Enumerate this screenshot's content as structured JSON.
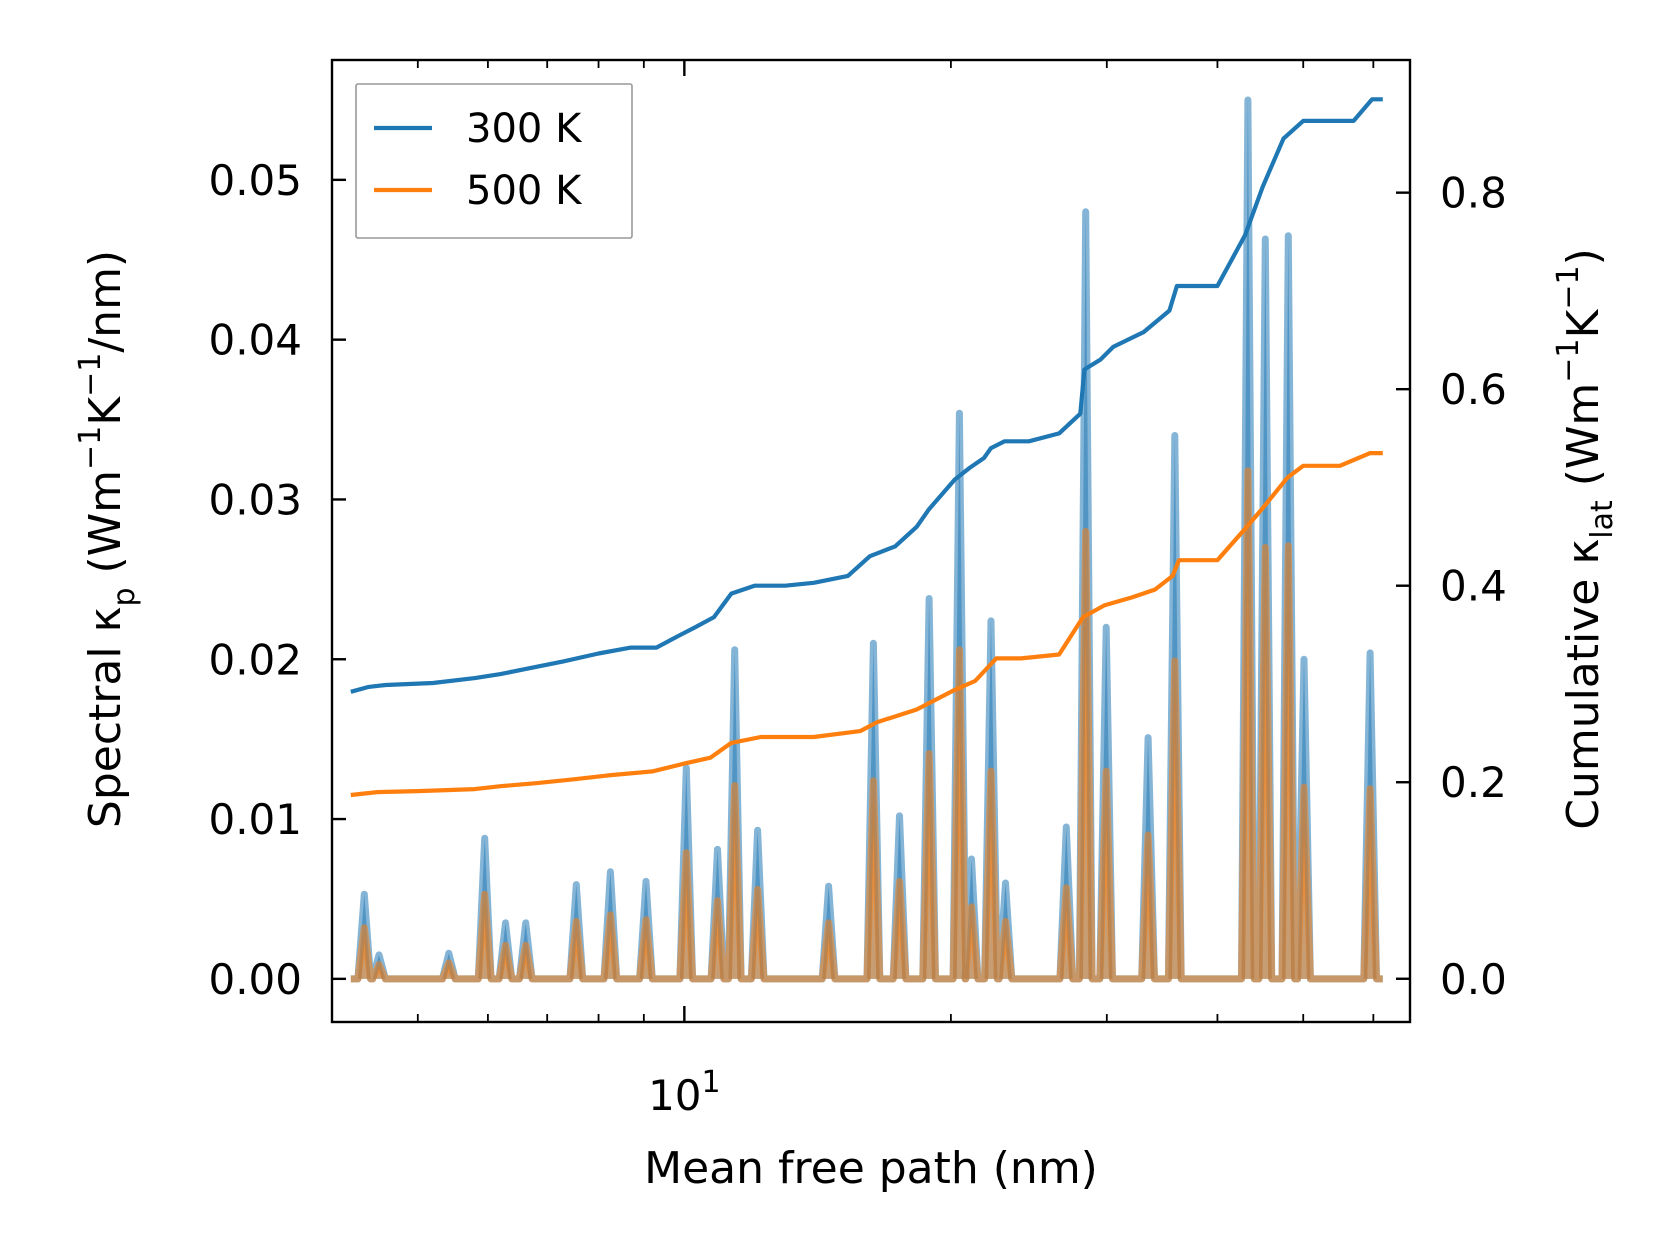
{
  "chart_data": {
    "type": "line",
    "xlabel": "Mean free path (nm)",
    "ylabel_left": "Spectral κ_p (Wm⁻¹K⁻¹/nm)",
    "ylabel_left_parts": [
      "Spectral κ",
      "p",
      " (Wm",
      "−1",
      "K",
      "−1",
      "/nm)"
    ],
    "ylabel_right": "Cumulative κ_lat (Wm⁻¹K⁻¹)",
    "ylabel_right_parts": [
      "Cumulative κ",
      "lat",
      " (Wm",
      "−1",
      "K",
      "−1",
      ")"
    ],
    "xscale": "log",
    "xlim": [
      4.0,
      66.0
    ],
    "ylim_left": [
      -0.0027,
      0.0575
    ],
    "ylim_right": [
      -0.044,
      0.935
    ],
    "x_tick_labels": [
      {
        "value": 10,
        "base": "10",
        "exp": "1"
      }
    ],
    "x_minor_ticks": [
      5,
      6,
      7,
      8,
      9,
      20,
      30,
      40,
      50,
      60
    ],
    "y_left_ticks": [
      0.0,
      0.01,
      0.02,
      0.03,
      0.04,
      0.05
    ],
    "y_left_tick_labels": [
      "0.00",
      "0.01",
      "0.02",
      "0.03",
      "0.04",
      "0.05"
    ],
    "y_right_ticks": [
      0.0,
      0.2,
      0.4,
      0.6,
      0.8
    ],
    "y_right_tick_labels": [
      "0.0",
      "0.2",
      "0.4",
      "0.6",
      "0.8"
    ],
    "legend_position": "upper-left",
    "series": [
      {
        "name": "300 K",
        "color": "#1f77b4",
        "spectral_peaks": [
          [
            4.35,
            0.0053
          ],
          [
            4.52,
            0.0015
          ],
          [
            5.42,
            0.0016
          ],
          [
            5.95,
            0.0088
          ],
          [
            6.28,
            0.0035
          ],
          [
            6.62,
            0.0035
          ],
          [
            7.55,
            0.0059
          ],
          [
            8.25,
            0.0067
          ],
          [
            9.05,
            0.0061
          ],
          [
            10.05,
            0.0132
          ],
          [
            10.9,
            0.0081
          ],
          [
            11.4,
            0.0206
          ],
          [
            12.1,
            0.0093
          ],
          [
            14.55,
            0.0058
          ],
          [
            16.35,
            0.021
          ],
          [
            17.5,
            0.0102
          ],
          [
            18.9,
            0.0238
          ],
          [
            20.45,
            0.0354
          ],
          [
            21.1,
            0.0075
          ],
          [
            22.2,
            0.0224
          ],
          [
            23.05,
            0.006
          ],
          [
            27.0,
            0.0095
          ],
          [
            28.4,
            0.048
          ],
          [
            29.95,
            0.022
          ],
          [
            33.4,
            0.0151
          ],
          [
            35.8,
            0.034
          ],
          [
            43.3,
            0.055
          ],
          [
            45.3,
            0.0463
          ],
          [
            48.1,
            0.0465
          ],
          [
            50.1,
            0.02
          ],
          [
            59.5,
            0.0204
          ]
        ],
        "cumulative_steps": [
          [
            4.2,
            0.292
          ],
          [
            4.4,
            0.297
          ],
          [
            4.6,
            0.299
          ],
          [
            5.2,
            0.301
          ],
          [
            5.8,
            0.306
          ],
          [
            6.2,
            0.31
          ],
          [
            6.6,
            0.315
          ],
          [
            7.3,
            0.323
          ],
          [
            8.0,
            0.331
          ],
          [
            8.7,
            0.337
          ],
          [
            9.3,
            0.337
          ],
          [
            9.9,
            0.35
          ],
          [
            10.3,
            0.358
          ],
          [
            10.8,
            0.368
          ],
          [
            11.3,
            0.392
          ],
          [
            12.0,
            0.4
          ],
          [
            13.0,
            0.4
          ],
          [
            14.0,
            0.403
          ],
          [
            15.3,
            0.41
          ],
          [
            16.2,
            0.43
          ],
          [
            17.3,
            0.44
          ],
          [
            18.3,
            0.46
          ],
          [
            18.9,
            0.478
          ],
          [
            20.2,
            0.508
          ],
          [
            21.0,
            0.52
          ],
          [
            21.8,
            0.53
          ],
          [
            22.2,
            0.54
          ],
          [
            23.0,
            0.547
          ],
          [
            24.5,
            0.547
          ],
          [
            26.5,
            0.555
          ],
          [
            28.0,
            0.575
          ],
          [
            28.3,
            0.62
          ],
          [
            29.5,
            0.63
          ],
          [
            30.5,
            0.643
          ],
          [
            33.0,
            0.658
          ],
          [
            35.3,
            0.68
          ],
          [
            36.0,
            0.705
          ],
          [
            40.0,
            0.705
          ],
          [
            43.0,
            0.757
          ],
          [
            45.0,
            0.806
          ],
          [
            47.5,
            0.855
          ],
          [
            50.0,
            0.873
          ],
          [
            55.0,
            0.873
          ],
          [
            57.0,
            0.873
          ],
          [
            59.8,
            0.895
          ],
          [
            61.5,
            0.895
          ]
        ]
      },
      {
        "name": "500 K",
        "color": "#ff7f0e",
        "spectral_peaks": [
          [
            4.35,
            0.0032
          ],
          [
            4.52,
            0.0009
          ],
          [
            5.42,
            0.001
          ],
          [
            5.95,
            0.0053
          ],
          [
            6.28,
            0.0021
          ],
          [
            6.62,
            0.0021
          ],
          [
            7.55,
            0.0036
          ],
          [
            8.25,
            0.004
          ],
          [
            9.05,
            0.0037
          ],
          [
            10.05,
            0.0079
          ],
          [
            10.9,
            0.0049
          ],
          [
            11.4,
            0.0121
          ],
          [
            12.1,
            0.0056
          ],
          [
            14.55,
            0.0035
          ],
          [
            16.35,
            0.0124
          ],
          [
            17.5,
            0.0061
          ],
          [
            18.9,
            0.0141
          ],
          [
            20.45,
            0.0206
          ],
          [
            21.1,
            0.0045
          ],
          [
            22.2,
            0.013
          ],
          [
            23.05,
            0.0036
          ],
          [
            27.0,
            0.0057
          ],
          [
            28.4,
            0.028
          ],
          [
            29.95,
            0.013
          ],
          [
            33.4,
            0.009
          ],
          [
            35.8,
            0.0199
          ],
          [
            43.3,
            0.0318
          ],
          [
            45.3,
            0.027
          ],
          [
            48.1,
            0.0271
          ],
          [
            50.1,
            0.012
          ],
          [
            59.5,
            0.0119
          ]
        ],
        "cumulative_steps": [
          [
            4.2,
            0.187
          ],
          [
            4.5,
            0.19
          ],
          [
            5.0,
            0.191
          ],
          [
            5.8,
            0.193
          ],
          [
            6.2,
            0.196
          ],
          [
            6.8,
            0.199
          ],
          [
            7.5,
            0.203
          ],
          [
            8.2,
            0.207
          ],
          [
            9.2,
            0.211
          ],
          [
            10.0,
            0.219
          ],
          [
            10.7,
            0.225
          ],
          [
            11.3,
            0.24
          ],
          [
            12.2,
            0.246
          ],
          [
            14.0,
            0.246
          ],
          [
            15.8,
            0.252
          ],
          [
            16.5,
            0.261
          ],
          [
            18.3,
            0.274
          ],
          [
            20.2,
            0.294
          ],
          [
            21.3,
            0.303
          ],
          [
            22.5,
            0.326
          ],
          [
            24.0,
            0.326
          ],
          [
            26.5,
            0.33
          ],
          [
            28.2,
            0.368
          ],
          [
            29.8,
            0.38
          ],
          [
            32.0,
            0.388
          ],
          [
            34.0,
            0.396
          ],
          [
            35.6,
            0.41
          ],
          [
            36.2,
            0.426
          ],
          [
            40.0,
            0.426
          ],
          [
            43.1,
            0.459
          ],
          [
            45.1,
            0.48
          ],
          [
            48.0,
            0.51
          ],
          [
            50.0,
            0.522
          ],
          [
            55.0,
            0.522
          ],
          [
            59.5,
            0.535
          ],
          [
            61.5,
            0.535
          ]
        ]
      }
    ]
  }
}
